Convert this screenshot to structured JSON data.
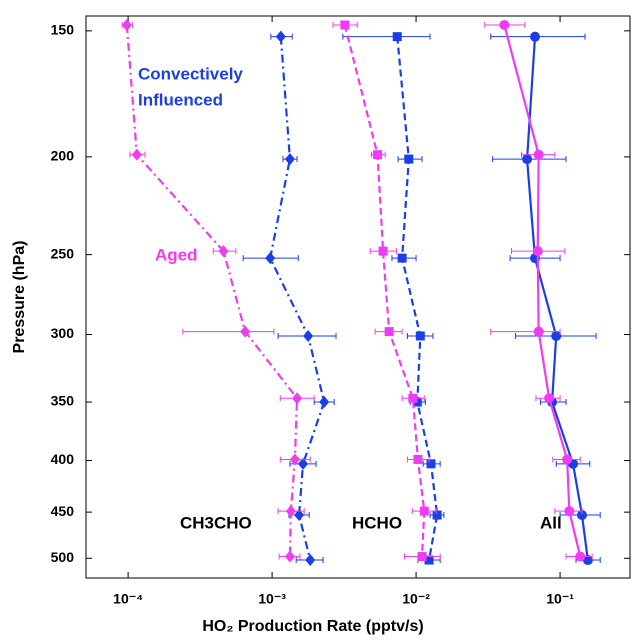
{
  "chart_data": {
    "type": "scatter",
    "xlabel": "HO₂ Production Rate (pptv/s)",
    "ylabel": "Pressure (hPa)",
    "xscale": "log",
    "yscale": "log",
    "yinvert": true,
    "xlim": [
      5.1e-05,
      0.306
    ],
    "ylim": [
      145,
      523
    ],
    "xticks": [
      {
        "value": 0.0001,
        "label": "10⁻⁴"
      },
      {
        "value": 0.001,
        "label": "10⁻³"
      },
      {
        "value": 0.01,
        "label": "10⁻²"
      },
      {
        "value": 0.1,
        "label": "10⁻¹"
      }
    ],
    "yticks": [
      150,
      200,
      250,
      300,
      350,
      400,
      450,
      500
    ],
    "annotations": [
      {
        "text": "Convectively",
        "color": "#1a3fe6"
      },
      {
        "text": "Influenced",
        "color": "#1a3fe6"
      },
      {
        "text": "Aged",
        "color": "#f03cf0"
      },
      {
        "text": "CH3CHO",
        "color": "#000000"
      },
      {
        "text": "HCHO",
        "color": "#000000"
      },
      {
        "text": "All",
        "color": "#000000"
      }
    ],
    "series": [
      {
        "color": "#1a3fe6",
        "marker": "diamond",
        "linestyle": "dashdot",
        "x": [
          0.00115,
          0.00133,
          0.00097,
          0.00178,
          0.0023,
          0.00164,
          0.00154,
          0.00184
        ],
        "y": [
          152,
          201,
          252,
          301,
          350,
          403,
          453,
          502
        ],
        "x_low": [
          0.00098,
          0.00119,
          0.00063,
          0.0011,
          0.00196,
          0.00133,
          0.00131,
          0.00147
        ],
        "x_high": [
          0.00138,
          0.00149,
          0.00152,
          0.00278,
          0.0027,
          0.00202,
          0.00181,
          0.00226
        ]
      },
      {
        "color": "#f03cf0",
        "marker": "diamond",
        "linestyle": "dashdot",
        "x": [
          9.8e-05,
          0.000115,
          0.00046,
          0.00065,
          0.00149,
          0.00144,
          0.00135,
          0.00133
        ],
        "y": [
          148,
          199,
          248,
          298,
          347,
          399,
          449,
          498
        ],
        "x_low": [
          9.1e-05,
          0.000103,
          0.00039,
          0.00024,
          0.00114,
          0.00114,
          0.0011,
          0.00112
        ],
        "x_high": [
          0.000107,
          0.000131,
          0.00056,
          0.00103,
          0.00196,
          0.00184,
          0.00167,
          0.00156
        ]
      },
      {
        "color": "#1a3fe6",
        "marker": "square",
        "linestyle": "dashed",
        "x": [
          0.0074,
          0.0089,
          0.008,
          0.0107,
          0.0102,
          0.0127,
          0.014,
          0.0123
        ],
        "y": [
          152,
          201,
          252,
          301,
          350,
          403,
          453,
          502
        ],
        "x_low": [
          0.0031,
          0.0075,
          0.0068,
          0.0087,
          0.0091,
          0.0112,
          0.0125,
          0.0103
        ],
        "x_high": [
          0.0125,
          0.011,
          0.01,
          0.0131,
          0.0116,
          0.0147,
          0.0156,
          0.0147
        ]
      },
      {
        "color": "#f03cf0",
        "marker": "square",
        "linestyle": "dashed",
        "x": [
          0.0032,
          0.0054,
          0.0059,
          0.0065,
          0.0095,
          0.0103,
          0.0114,
          0.011
        ],
        "y": [
          148,
          199,
          248,
          298,
          347,
          399,
          449,
          498
        ],
        "x_low": [
          0.00265,
          0.0049,
          0.0048,
          0.0052,
          0.008,
          0.0087,
          0.0094,
          0.0083
        ],
        "x_high": [
          0.0039,
          0.0061,
          0.0073,
          0.008,
          0.0114,
          0.0123,
          0.0138,
          0.0147
        ]
      },
      {
        "color": "#1a3fe6",
        "marker": "circle",
        "linestyle": "solid",
        "x": [
          0.067,
          0.059,
          0.067,
          0.094,
          0.088,
          0.123,
          0.142,
          0.156
        ],
        "y": [
          152,
          201,
          252,
          301,
          350,
          403,
          453,
          502
        ],
        "x_low": [
          0.033,
          0.034,
          0.045,
          0.049,
          0.073,
          0.094,
          0.1,
          0.129
        ],
        "x_high": [
          0.149,
          0.11,
          0.1,
          0.178,
          0.11,
          0.161,
          0.19,
          0.19
        ]
      },
      {
        "color": "#f03cf0",
        "marker": "circle",
        "linestyle": "solid",
        "x": [
          0.041,
          0.071,
          0.07,
          0.071,
          0.084,
          0.112,
          0.116,
          0.138
        ],
        "y": [
          148,
          199,
          248,
          298,
          347,
          399,
          449,
          498
        ],
        "x_low": [
          0.03,
          0.054,
          0.046,
          0.033,
          0.068,
          0.089,
          0.092,
          0.11
        ],
        "x_high": [
          0.057,
          0.092,
          0.108,
          0.1,
          0.1,
          0.138,
          0.142,
          0.167
        ]
      }
    ]
  }
}
